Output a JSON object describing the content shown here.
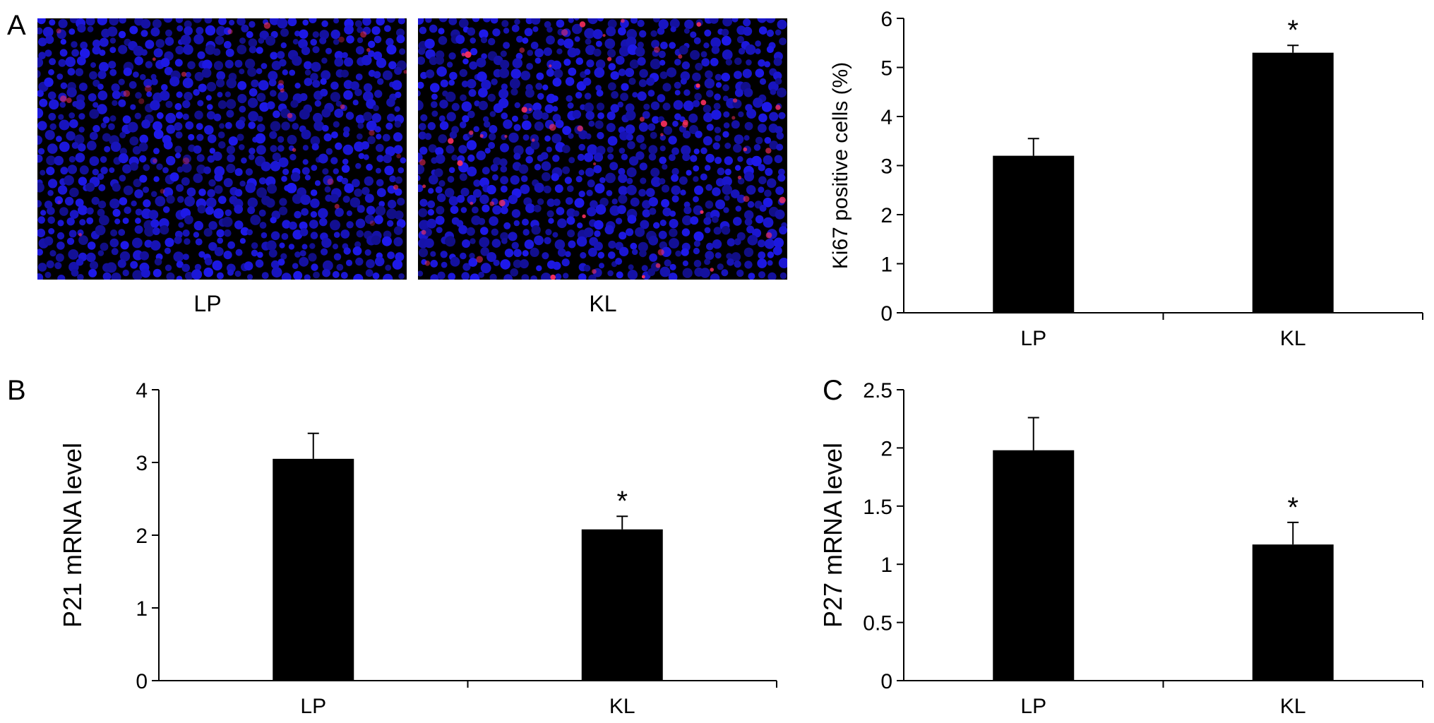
{
  "panel_labels": {
    "a": "A",
    "b": "B",
    "c": "C"
  },
  "images": [
    {
      "caption": "LP",
      "name": "lp"
    },
    {
      "caption": "KL",
      "name": "kl"
    }
  ],
  "colors": {
    "bar": "#000000",
    "nuclei": "#2a20e0",
    "positive": "#ff3060",
    "background": "#000000"
  },
  "chart_data": [
    {
      "type": "bar",
      "panel": "A",
      "title": "",
      "categories": [
        "LP",
        "KL"
      ],
      "values": [
        3.2,
        5.3
      ],
      "errors": [
        0.35,
        0.15
      ],
      "significance": [
        "",
        "*"
      ],
      "ylabel": "Ki67 positive cells (%)",
      "xlabel": "",
      "ylim": [
        0,
        6
      ],
      "yticks": [
        0,
        1,
        2,
        3,
        4,
        5,
        6
      ],
      "ytick_labels": [
        "0",
        "1",
        "2",
        "3",
        "4",
        "5",
        "6"
      ],
      "grid": false
    },
    {
      "type": "bar",
      "panel": "B",
      "title": "",
      "categories": [
        "LP",
        "KL"
      ],
      "values": [
        3.05,
        2.08
      ],
      "errors": [
        0.35,
        0.18
      ],
      "significance": [
        "",
        "*"
      ],
      "ylabel": "P21 mRNA level",
      "xlabel": "",
      "ylim": [
        0,
        4
      ],
      "yticks": [
        0,
        1,
        2,
        3,
        4
      ],
      "ytick_labels": [
        "0",
        "1",
        "2",
        "3",
        "4"
      ],
      "grid": false
    },
    {
      "type": "bar",
      "panel": "C",
      "title": "",
      "categories": [
        "LP",
        "KL"
      ],
      "values": [
        1.98,
        1.17
      ],
      "errors": [
        0.28,
        0.19
      ],
      "significance": [
        "",
        "*"
      ],
      "ylabel": "P27 mRNA level",
      "xlabel": "",
      "ylim": [
        0,
        2.5
      ],
      "yticks": [
        0,
        0.5,
        1,
        1.5,
        2,
        2.5
      ],
      "ytick_labels": [
        "0",
        "0.5",
        "1",
        "1.5",
        "2",
        "2.5"
      ],
      "grid": false
    }
  ]
}
